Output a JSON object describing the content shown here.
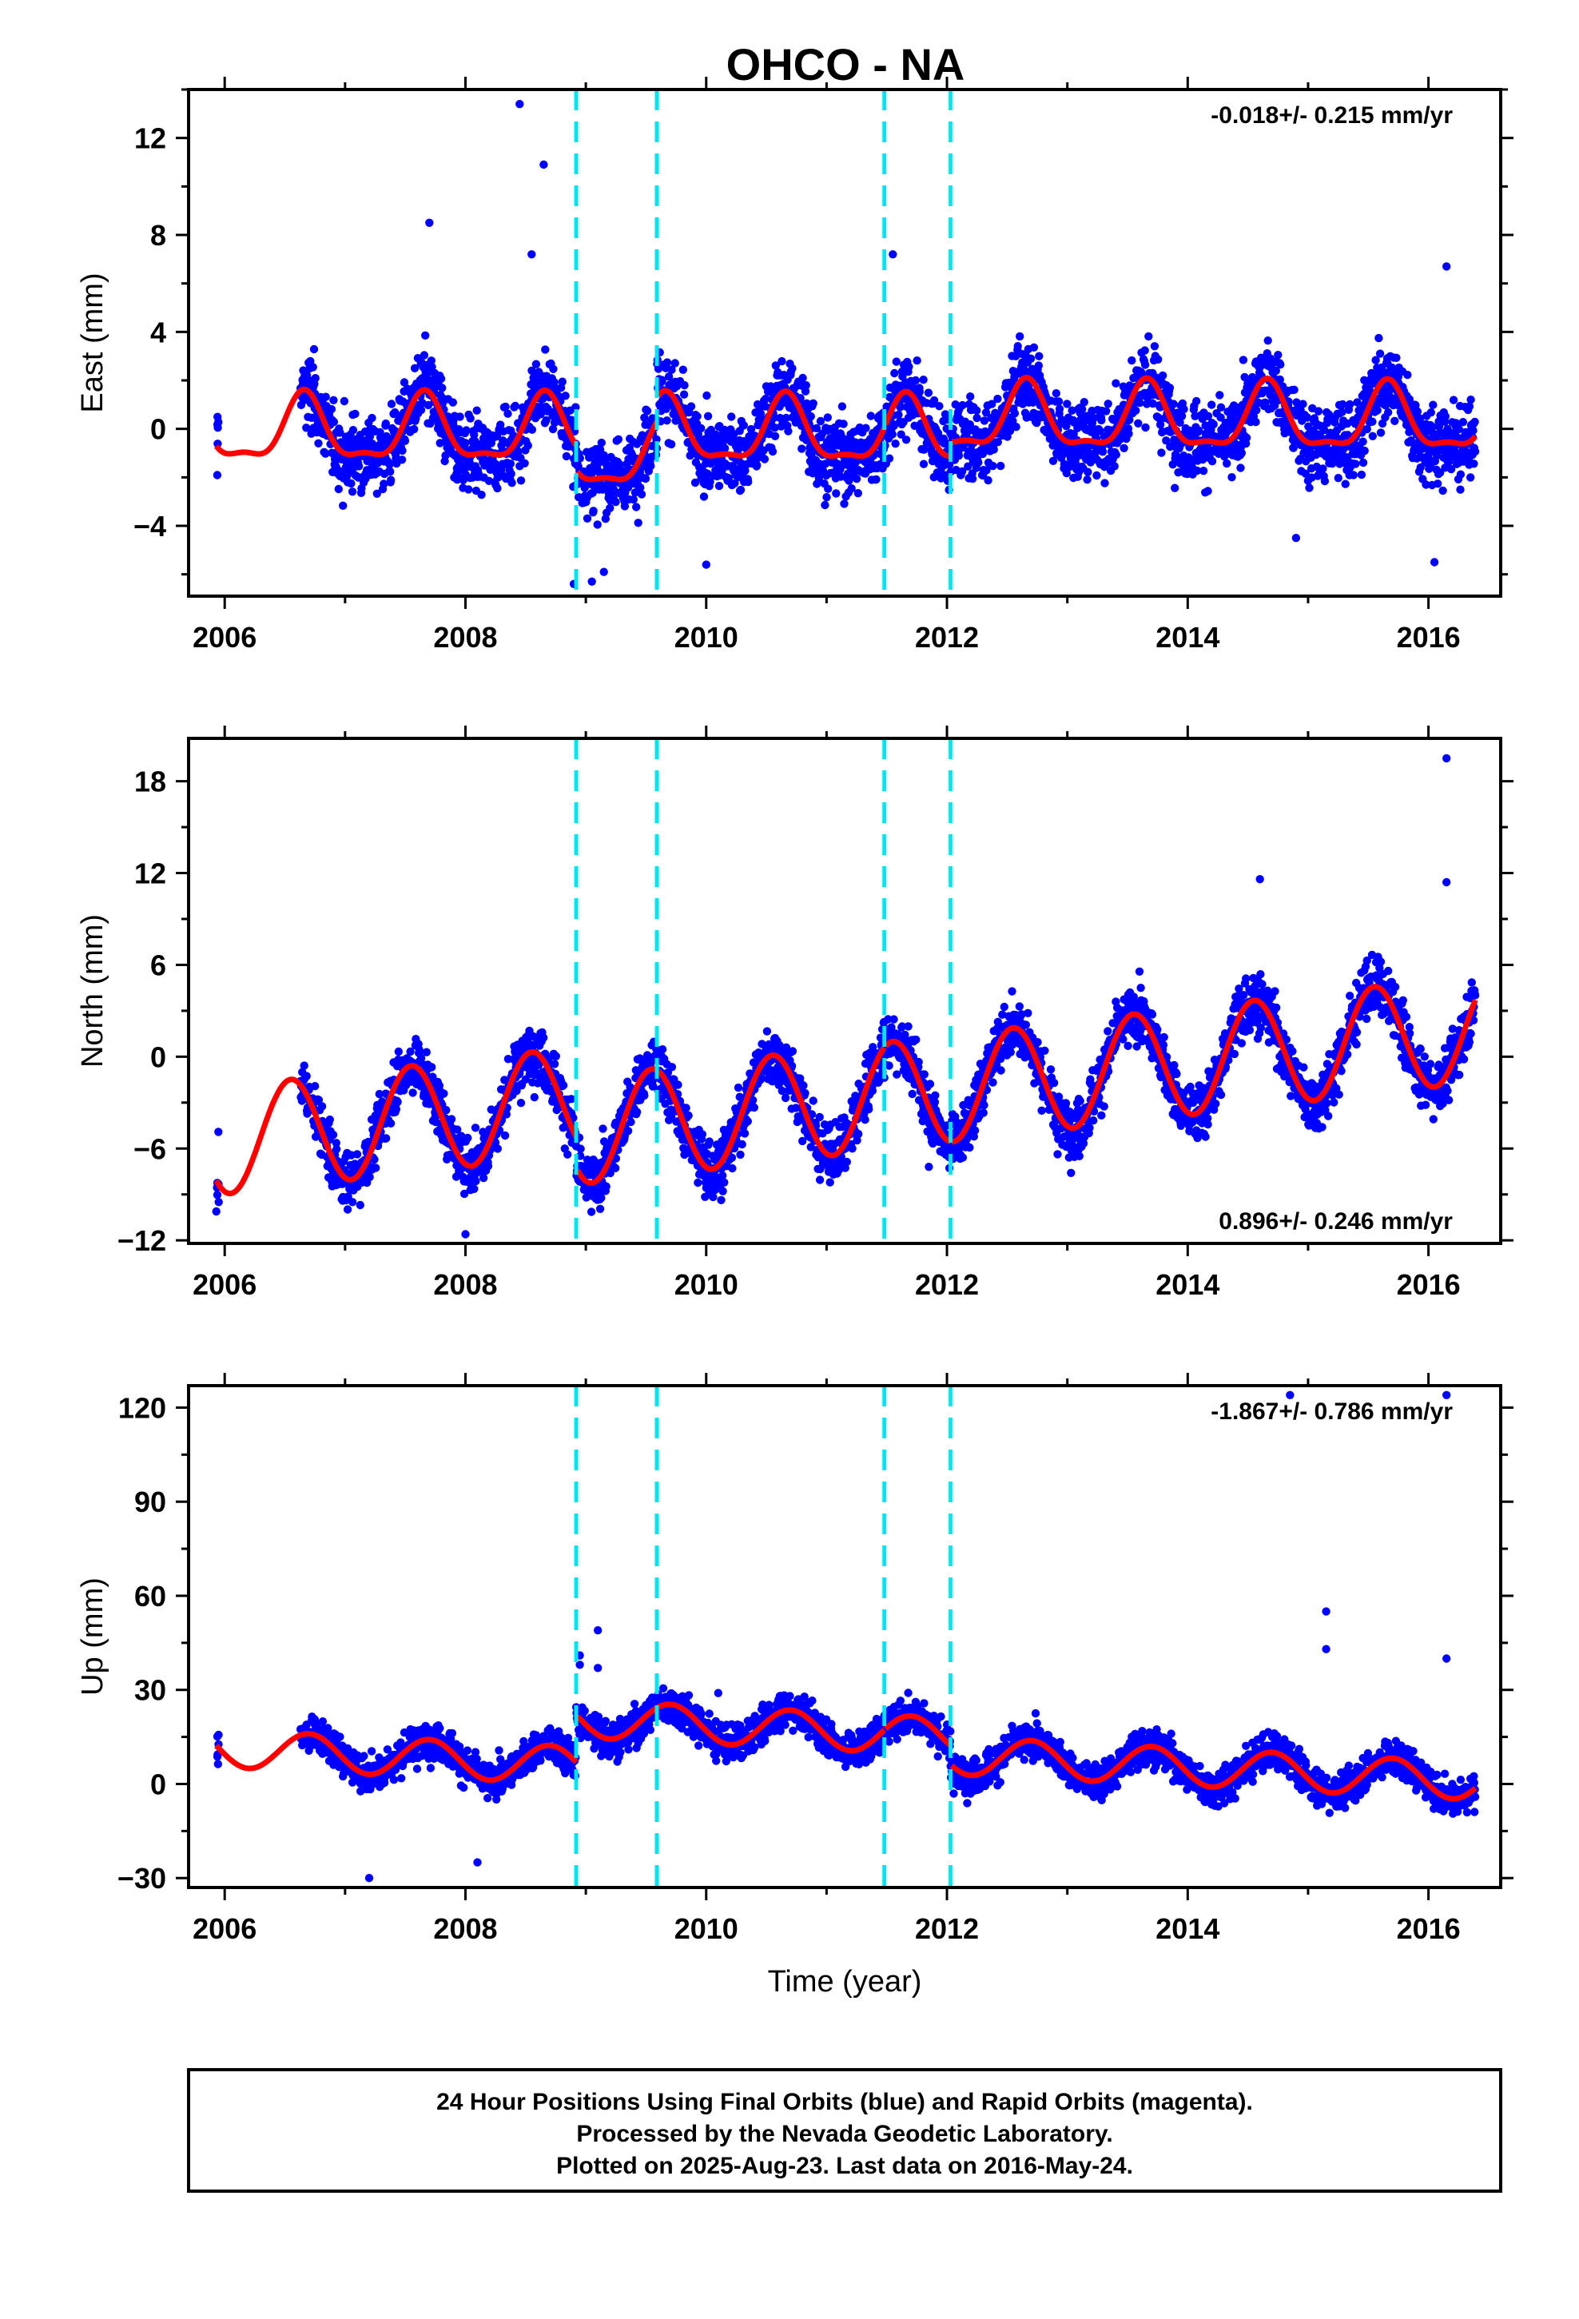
{
  "figure": {
    "title": "OHCO - NA",
    "caption": [
      "24 Hour Positions Using Final Orbits (blue) and Rapid Orbits (magenta).",
      "Processed by the Nevada Geodetic Laboratory.",
      "Plotted on 2025-Aug-23. Last data on 2016-May-24."
    ],
    "colors": {
      "points": "#0000ff",
      "fit": "#ff0000",
      "steps": "#00e5ee",
      "frame": "#000000"
    }
  },
  "chart_data": [
    {
      "type": "scatter",
      "name": "east",
      "ylabel": "East (mm)",
      "xlabel": "",
      "rate": "-0.018+/- 0.215 mm/yr",
      "rate_position": "top-right",
      "xlim": [
        2005.7,
        2016.6
      ],
      "ylim": [
        -6.9,
        14
      ],
      "xticks": [
        2006,
        2008,
        2010,
        2012,
        2014,
        2016
      ],
      "yticks": [
        -4,
        0,
        4,
        8,
        12
      ],
      "grid": false,
      "steps": [
        2008.92,
        2009.59,
        2011.48,
        2012.03
      ],
      "model": {
        "offset": -0.2,
        "trend": -0.018,
        "annual_amp": 1.3,
        "annual_peak": 0.66,
        "semi_amp": 0.45,
        "semi_peak": 0.66,
        "noise": 1.1,
        "offsets_at_steps": [
          -1.0,
          1.0,
          0.0,
          0.6
        ]
      },
      "outliers": [
        [
          2008.45,
          13.4
        ],
        [
          2008.65,
          10.9
        ],
        [
          2007.7,
          8.5
        ],
        [
          2008.55,
          7.2
        ],
        [
          2011.55,
          7.2
        ],
        [
          2016.15,
          6.7
        ],
        [
          2008.9,
          -6.4
        ],
        [
          2009.05,
          -6.3
        ],
        [
          2009.15,
          -5.9
        ],
        [
          2010.0,
          -5.6
        ],
        [
          2016.05,
          -5.5
        ],
        [
          2014.9,
          -4.5
        ]
      ]
    },
    {
      "type": "scatter",
      "name": "north",
      "ylabel": "North (mm)",
      "xlabel": "",
      "rate": "0.896+/- 0.246 mm/yr",
      "rate_position": "bottom-right",
      "xlim": [
        2005.7,
        2016.6
      ],
      "ylim": [
        -12.2,
        20.8
      ],
      "xticks": [
        2006,
        2008,
        2010,
        2012,
        2014,
        2016
      ],
      "yticks": [
        -12,
        -6,
        0,
        6,
        12,
        18
      ],
      "grid": false,
      "steps": [
        2008.92,
        2009.59,
        2011.48,
        2012.03
      ],
      "model": {
        "offset": -1.0,
        "trend": 0.896,
        "annual_amp": 3.5,
        "annual_peak": 0.55,
        "semi_amp": 0.0,
        "semi_peak": 0.0,
        "noise": 1.3,
        "offsets_at_steps": [
          -2.0,
          0.0,
          0.0,
          0.0
        ]
      },
      "outliers": [
        [
          2016.15,
          19.5
        ],
        [
          2016.15,
          11.4
        ],
        [
          2014.6,
          11.6
        ],
        [
          2008.0,
          -11.6
        ],
        [
          2005.95,
          -9.5
        ],
        [
          2005.95,
          -8.5
        ],
        [
          2007.0,
          -7.8
        ],
        [
          2011.85,
          -7.2
        ],
        [
          2013.1,
          -6.5
        ]
      ]
    },
    {
      "type": "scatter",
      "name": "up",
      "ylabel": "Up (mm)",
      "xlabel": "Time (year)",
      "rate": "-1.867+/- 0.786 mm/yr",
      "rate_position": "top-right",
      "xlim": [
        2005.7,
        2016.6
      ],
      "ylim": [
        -33,
        127
      ],
      "xticks": [
        2006,
        2008,
        2010,
        2012,
        2014,
        2016
      ],
      "yticks": [
        -30,
        0,
        30,
        60,
        90,
        120
      ],
      "grid": false,
      "steps": [
        2008.92,
        2009.59,
        2011.48,
        2012.03
      ],
      "model": {
        "offset": 2.0,
        "trend": -1.867,
        "annual_amp": 6.0,
        "annual_peak": 0.7,
        "semi_amp": 0.0,
        "semi_peak": 0.0,
        "noise": 4.0,
        "offsets_at_steps": [
          15.0,
          0.0,
          0.0,
          -6.0
        ]
      },
      "outliers": [
        [
          2014.85,
          124
        ],
        [
          2016.15,
          124
        ],
        [
          2009.1,
          49
        ],
        [
          2008.95,
          41
        ],
        [
          2008.95,
          38
        ],
        [
          2009.1,
          37
        ],
        [
          2015.15,
          55
        ],
        [
          2015.15,
          43
        ],
        [
          2016.15,
          40
        ],
        [
          2010.1,
          29
        ],
        [
          2007.2,
          -30
        ],
        [
          2008.1,
          -25
        ]
      ]
    }
  ]
}
